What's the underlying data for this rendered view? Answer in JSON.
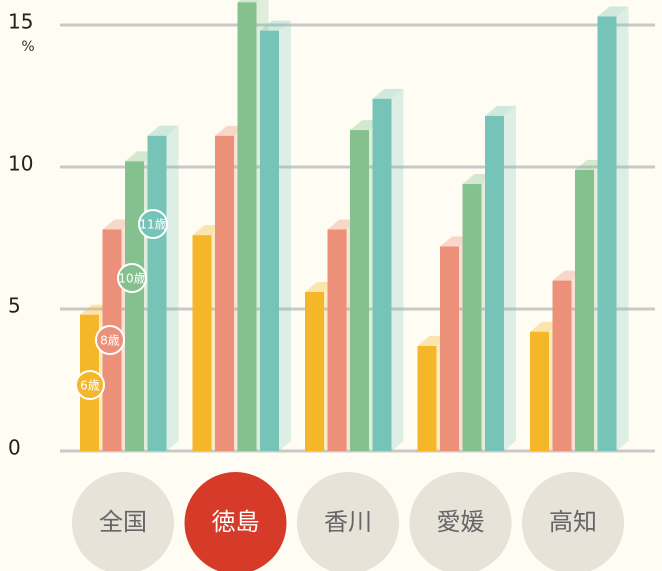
{
  "chart_data": {
    "type": "bar",
    "unit": "%",
    "categories": [
      "全国",
      "徳島",
      "香川",
      "愛媛",
      "高知"
    ],
    "selected_category": 1,
    "series": [
      {
        "name": "6歳",
        "color": "#f5b62a",
        "values": [
          4.8,
          7.6,
          5.6,
          3.7,
          4.2
        ]
      },
      {
        "name": "8歳",
        "color": "#ec907a",
        "values": [
          7.8,
          11.1,
          7.8,
          7.2,
          6.0
        ]
      },
      {
        "name": "10歳",
        "color": "#85c18f",
        "values": [
          10.2,
          15.8,
          11.3,
          9.4,
          9.9
        ]
      },
      {
        "name": "11歳",
        "color": "#76c4b8",
        "values": [
          11.1,
          14.8,
          12.4,
          11.8,
          15.3
        ]
      }
    ],
    "ylim": [
      0,
      15.8
    ],
    "yticks": [
      0,
      5,
      10,
      15
    ],
    "grid": true
  }
}
